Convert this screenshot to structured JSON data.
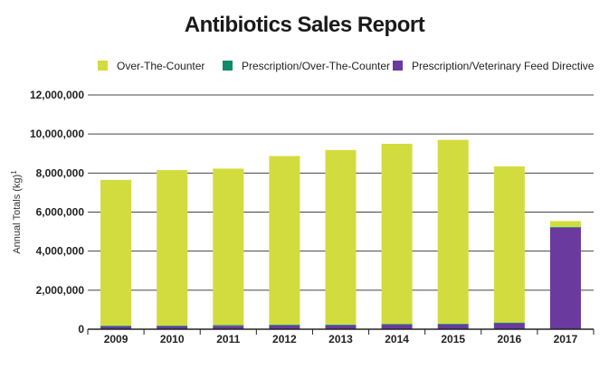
{
  "chart_data": {
    "type": "bar",
    "stacked": true,
    "title": "Antibiotics Sales Report",
    "ylabel": "Annual Totals (kg)",
    "ylabel_superscript": "1",
    "xlabel": "",
    "ylim": [
      0,
      12000000
    ],
    "yticks": [
      0,
      2000000,
      4000000,
      6000000,
      8000000,
      10000000,
      12000000
    ],
    "ytick_labels": [
      "0",
      "2,000,000",
      "4,000,000",
      "6,000,000",
      "8,000,000",
      "10,000,000",
      "12,000,000"
    ],
    "grid": true,
    "legend_position": "top",
    "categories": [
      "2009",
      "2010",
      "2011",
      "2012",
      "2013",
      "2014",
      "2015",
      "2016",
      "2017"
    ],
    "series": [
      {
        "name": "Prescription/Veterinary Feed Directive",
        "color": "#6a3a9e",
        "values": [
          140000,
          150000,
          170000,
          190000,
          200000,
          230000,
          240000,
          300000,
          5200000
        ]
      },
      {
        "name": "Prescription/Over-The-Counter",
        "color": "#0f8a6a",
        "values": [
          40000,
          40000,
          40000,
          40000,
          40000,
          40000,
          40000,
          40000,
          40000
        ]
      },
      {
        "name": "Over-The-Counter",
        "color": "#d3dc3e",
        "values": [
          7470000,
          7960000,
          8020000,
          8640000,
          8940000,
          9230000,
          9420000,
          8000000,
          300000
        ]
      }
    ],
    "legend_order": [
      "Over-The-Counter",
      "Prescription/Over-The-Counter",
      "Prescription/Veterinary Feed Directive"
    ]
  }
}
